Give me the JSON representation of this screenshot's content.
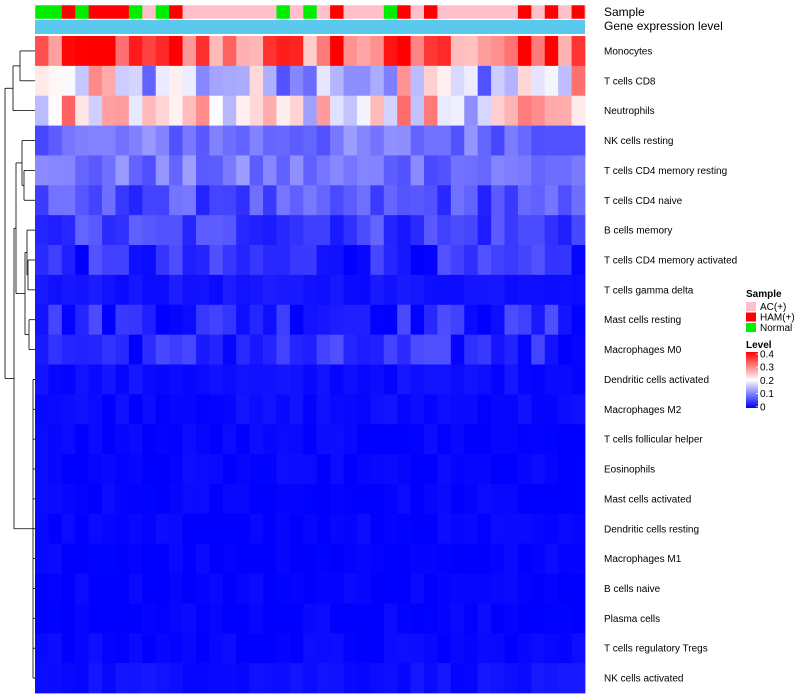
{
  "chart_data": {
    "type": "heatmap",
    "annotation_labels": [
      "Sample",
      "Gene expression level"
    ],
    "sample_groups": [
      "N",
      "N",
      "H",
      "N",
      "H",
      "H",
      "H",
      "N",
      "A",
      "N",
      "H",
      "A",
      "A",
      "A",
      "A",
      "A",
      "A",
      "A",
      "N",
      "A",
      "N",
      "A",
      "H",
      "A",
      "A",
      "A",
      "N",
      "H",
      "A",
      "H",
      "A",
      "A",
      "A",
      "A",
      "A",
      "A",
      "H",
      "A",
      "H",
      "A",
      "H"
    ],
    "rows": [
      "Monocytes",
      "T cells CD8",
      "Neutrophils",
      "NK cells resting",
      "T cells CD4 memory resting",
      "T cells CD4 naive",
      "B cells memory",
      "T cells CD4 memory activated",
      "T cells gamma delta",
      "Mast cells resting",
      "Macrophages M0",
      "Dendritic cells activated",
      "Macrophages M2",
      "T cells follicular helper",
      "Eosinophils",
      "Mast cells activated",
      "Dendritic cells resting",
      "Macrophages M1",
      "B cells naive",
      "Plasma cells",
      "T cells regulatory  Tregs",
      "NK cells activated"
    ],
    "row_base": [
      0.31,
      0.15,
      0.2,
      0.09,
      0.09,
      0.06,
      0.05,
      0.03,
      0.015,
      0.03,
      0.03,
      0.01,
      0.008,
      0.003,
      0.002,
      0.002,
      0.002,
      0.002,
      0.002,
      0.002,
      0.004,
      0.012
    ],
    "value_range": [
      0,
      0.4
    ],
    "legend": {
      "sample_title": "Sample",
      "sample_items": [
        {
          "key": "A",
          "label": "AC(+)",
          "color": "#FFC0CB"
        },
        {
          "key": "H",
          "label": "HAM(+)",
          "color": "#FF0000"
        },
        {
          "key": "N",
          "label": "Normal",
          "color": "#00EE00"
        }
      ],
      "level_title": "Level",
      "level_ticks": [
        "0.4",
        "0.3",
        "0.2",
        "0.1",
        "0"
      ]
    },
    "colors": {
      "low": "#0000FF",
      "mid": "#FFFFFF",
      "high": "#FF0000",
      "gene_level_bar": "#5BC8EE"
    }
  }
}
